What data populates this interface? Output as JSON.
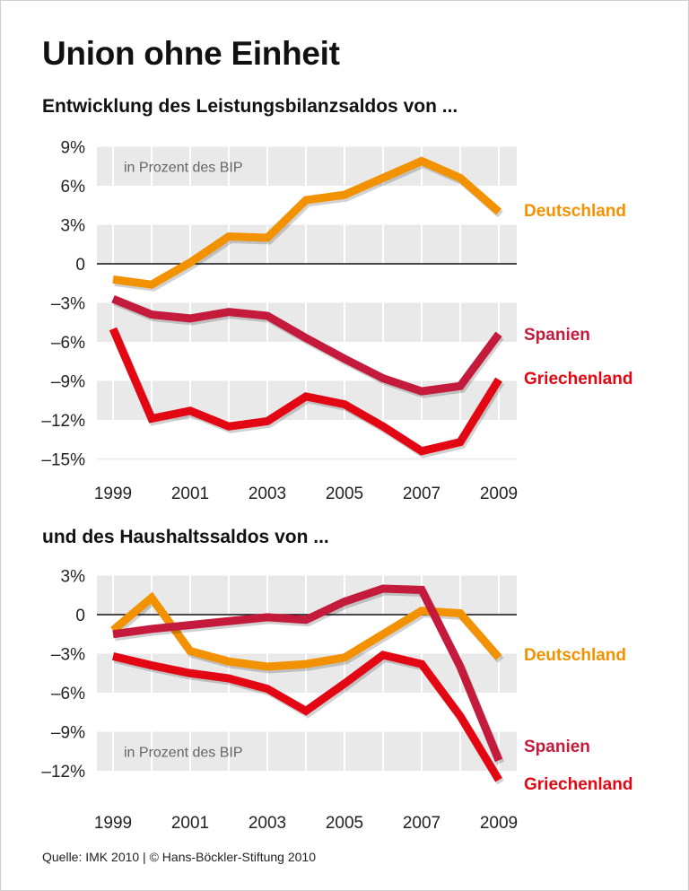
{
  "title": "Union ohne Einheit",
  "source": "Quelle: IMK 2010 | © Hans-Böckler-Stiftung 2010",
  "colors": {
    "Deutschland": "#f39200",
    "Spanien": "#c41a3b",
    "Griechenland": "#e30613",
    "band": "#e9e9e9"
  },
  "chart_data": [
    {
      "type": "line",
      "title": "Entwicklung des Leistungsbilanzsaldos von ...",
      "note": "in Prozent des BIP",
      "x": [
        1999,
        2000,
        2001,
        2002,
        2003,
        2004,
        2005,
        2006,
        2007,
        2008,
        2009
      ],
      "xtick_labels": [
        "1999",
        "2001",
        "2003",
        "2005",
        "2007",
        "2009"
      ],
      "ytick_values": [
        9,
        6,
        3,
        0,
        -3,
        -6,
        -9,
        -12,
        -15
      ],
      "ytick_labels": [
        "9%",
        "6%",
        "3%",
        "0",
        "–3%",
        "–6%",
        "–9%",
        "–12%",
        "–15%"
      ],
      "ylim": [
        -15,
        9
      ],
      "grid": true,
      "series": [
        {
          "name": "Deutschland",
          "values": [
            -1.2,
            -1.6,
            0.1,
            2.1,
            2.0,
            4.9,
            5.3,
            6.6,
            7.9,
            6.6,
            4.0
          ]
        },
        {
          "name": "Spanien",
          "values": [
            -2.7,
            -3.9,
            -4.2,
            -3.7,
            -4.0,
            -5.7,
            -7.3,
            -8.8,
            -9.8,
            -9.4,
            -5.4
          ]
        },
        {
          "name": "Griechenland",
          "values": [
            -5.0,
            -11.9,
            -11.3,
            -12.5,
            -12.1,
            -10.2,
            -10.8,
            -12.5,
            -14.4,
            -13.7,
            -8.9
          ]
        }
      ]
    },
    {
      "type": "line",
      "title": "und des Haushaltssaldos von ...",
      "note": "in Prozent des BIP",
      "x": [
        1999,
        2000,
        2001,
        2002,
        2003,
        2004,
        2005,
        2006,
        2007,
        2008,
        2009
      ],
      "xtick_labels": [
        "1999",
        "2001",
        "2003",
        "2005",
        "2007",
        "2009"
      ],
      "ytick_values": [
        3,
        0,
        -3,
        -6,
        -9,
        -12
      ],
      "ytick_labels": [
        "3%",
        "0",
        "–3%",
        "–6%",
        "–9%",
        "–12%"
      ],
      "ylim": [
        -12,
        3
      ],
      "grid": true,
      "series": [
        {
          "name": "Deutschland",
          "values": [
            -1.2,
            1.3,
            -2.8,
            -3.6,
            -4.0,
            -3.8,
            -3.3,
            -1.5,
            0.3,
            0.1,
            -3.3
          ]
        },
        {
          "name": "Spanien",
          "values": [
            -1.5,
            -1.1,
            -0.8,
            -0.5,
            -0.2,
            -0.4,
            1.0,
            2.0,
            1.9,
            -4.0,
            -11.2
          ]
        },
        {
          "name": "Griechenland",
          "values": [
            -3.2,
            -3.9,
            -4.5,
            -4.9,
            -5.7,
            -7.4,
            -5.3,
            -3.1,
            -3.8,
            -7.8,
            -12.7
          ]
        }
      ]
    }
  ]
}
